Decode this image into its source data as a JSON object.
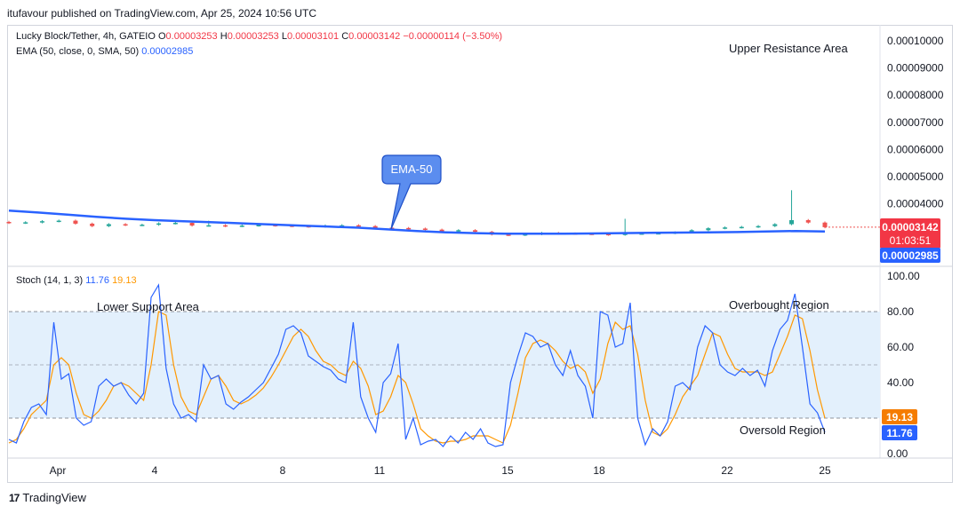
{
  "publisher_line": "itufavour published on TradingView.com, Apr 25, 2024 10:56 UTC",
  "legend": {
    "symbol": "Lucky Block/Tether, 4h, GATEIO",
    "o_label": "O",
    "o_value": "0.00003253",
    "h_label": "H",
    "h_value": "0.00003253",
    "l_label": "L",
    "l_value": "0.00003101",
    "c_label": "C",
    "c_value": "0.00003142",
    "change": "−0.00000114 (−3.50%)",
    "ema_label": "EMA (50, close, 0, SMA, 50)",
    "ema_value": "0.00002985",
    "stoch_label": "Stoch (14, 1, 3)",
    "stoch_k_value": "11.76",
    "stoch_d_value": "19.13"
  },
  "annotations": {
    "upper_resistance": "Upper Resistance Area",
    "lower_support": "Lower Support Area",
    "ema_callout": "EMA-50",
    "overbought": "Overbought Region",
    "oversold": "Oversold Region"
  },
  "price_badges": {
    "last_price": "0.00003142",
    "countdown": "01:03:51",
    "ema_price": "0.00002985"
  },
  "stoch_badges": {
    "d_value": "19.13",
    "k_value": "11.76"
  },
  "footer": {
    "brand": "TradingView"
  },
  "colors": {
    "up": "#26a69a",
    "down": "#ef5350",
    "ema": "#2962ff",
    "stoch_k": "#2962ff",
    "stoch_d": "#ff9800",
    "band": "#e3f0fc",
    "last_price_badge": "#f23645",
    "ema_badge": "#2962ff",
    "d_badge": "#f57c00"
  },
  "chart_data": [
    {
      "type": "candlestick",
      "title": "Lucky Block/Tether, 4h, GATEIO",
      "x_tick_labels": [
        "Apr",
        "4",
        "8",
        "11",
        "15",
        "18",
        "22",
        "25"
      ],
      "y_tick_labels": [
        "0.00010000",
        "0.00009000",
        "0.00008000",
        "0.00007000",
        "0.00006000",
        "0.00005000",
        "0.00004000"
      ],
      "ylim": [
        2e-05,
        0.0001
      ],
      "series": [
        {
          "name": "EMA (50, close, 0, SMA, 50)",
          "type": "line",
          "values": [
            3.75e-05,
            3.68e-05,
            3.6e-05,
            3.52e-05,
            3.45e-05,
            3.4e-05,
            3.36e-05,
            3.32e-05,
            3.28e-05,
            3.24e-05,
            3.2e-05,
            3.16e-05,
            3.12e-05,
            3.06e-05,
            3e-05,
            2.95e-05,
            2.92e-05,
            2.9e-05,
            2.9e-05,
            2.9e-05,
            2.91e-05,
            2.92e-05,
            2.93e-05,
            2.94e-05,
            2.95e-05,
            2.96e-05,
            2.98e-05,
            3e-05,
            2.98e-05
          ]
        },
        {
          "name": "close",
          "type": "candles",
          "values": [
            3.3e-05,
            3.32e-05,
            3.36e-05,
            3.38e-05,
            3.27e-05,
            3.18e-05,
            3.25e-05,
            3.22e-05,
            3.23e-05,
            3.28e-05,
            3.3e-05,
            3.2e-05,
            3.21e-05,
            3.18e-05,
            3.2e-05,
            3.22e-05,
            3.2e-05,
            3.18e-05,
            3.16e-05,
            3.2e-05,
            3.21e-05,
            3.18e-05,
            3.12e-05,
            3.11e-05,
            3.09e-05,
            3.05e-05,
            2.98e-05,
            3.03e-05,
            2.97e-05,
            2.87e-05,
            2.85e-05,
            2.88e-05,
            2.93e-05,
            2.91e-05,
            2.9e-05,
            2.89e-05,
            2.86e-05,
            2.9e-05,
            2.91e-05,
            2.92e-05,
            2.95e-05,
            3.03e-05,
            3.1e-05,
            3.13e-05,
            3.15e-05,
            3.18e-05,
            3.25e-05,
            3.4e-05,
            3.31e-05,
            3.14e-05
          ],
          "notable": {
            "spike_high": 4.5e-05,
            "last_close": 3.142e-05
          }
        }
      ]
    },
    {
      "type": "line",
      "title": "Stoch (14, 1, 3)",
      "x_tick_labels": [
        "Apr",
        "4",
        "8",
        "11",
        "15",
        "18",
        "22",
        "25"
      ],
      "y_tick_labels": [
        "100.00",
        "80.00",
        "60.00",
        "40.00",
        "20.00",
        "0.00"
      ],
      "ylim": [
        0,
        100
      ],
      "overbought_level": 80,
      "middle_level": 50,
      "oversold_level": 20,
      "series": [
        {
          "name": "%K",
          "values": [
            8,
            6,
            18,
            26,
            28,
            22,
            74,
            42,
            45,
            20,
            16,
            18,
            38,
            42,
            38,
            40,
            33,
            28,
            34,
            88,
            95,
            48,
            28,
            20,
            22,
            18,
            50,
            42,
            44,
            28,
            25,
            29,
            32,
            36,
            40,
            48,
            56,
            70,
            72,
            68,
            55,
            52,
            49,
            47,
            42,
            40,
            74,
            32,
            20,
            12,
            40,
            45,
            62,
            8,
            20,
            5,
            7,
            8,
            4,
            10,
            6,
            12,
            8,
            14,
            6,
            4,
            5,
            40,
            55,
            68,
            66,
            60,
            62,
            50,
            44,
            58,
            44,
            38,
            20,
            80,
            78,
            60,
            62,
            85,
            20,
            5,
            14,
            10,
            18,
            38,
            40,
            36,
            60,
            72,
            68,
            50,
            46,
            44,
            48,
            44,
            47,
            38,
            58,
            70,
            75,
            90,
            60,
            28,
            23,
            12
          ],
          "last": 11.76
        },
        {
          "name": "%D",
          "values": [
            6,
            8,
            14,
            22,
            26,
            30,
            50,
            54,
            50,
            34,
            22,
            20,
            24,
            30,
            38,
            40,
            38,
            34,
            30,
            50,
            80,
            78,
            50,
            32,
            24,
            22,
            32,
            42,
            44,
            38,
            30,
            28,
            30,
            33,
            37,
            43,
            50,
            58,
            66,
            70,
            66,
            58,
            52,
            50,
            46,
            44,
            52,
            48,
            38,
            22,
            24,
            32,
            44,
            40,
            28,
            14,
            10,
            7,
            6,
            7,
            7,
            8,
            10,
            10,
            10,
            8,
            6,
            16,
            34,
            54,
            62,
            64,
            62,
            58,
            52,
            48,
            50,
            46,
            34,
            42,
            62,
            74,
            70,
            72,
            56,
            30,
            12,
            10,
            14,
            22,
            32,
            38,
            44,
            56,
            68,
            66,
            56,
            48,
            46,
            46,
            46,
            44,
            46,
            56,
            66,
            78,
            76,
            58,
            36,
            20
          ],
          "last": 19.13
        }
      ]
    }
  ]
}
